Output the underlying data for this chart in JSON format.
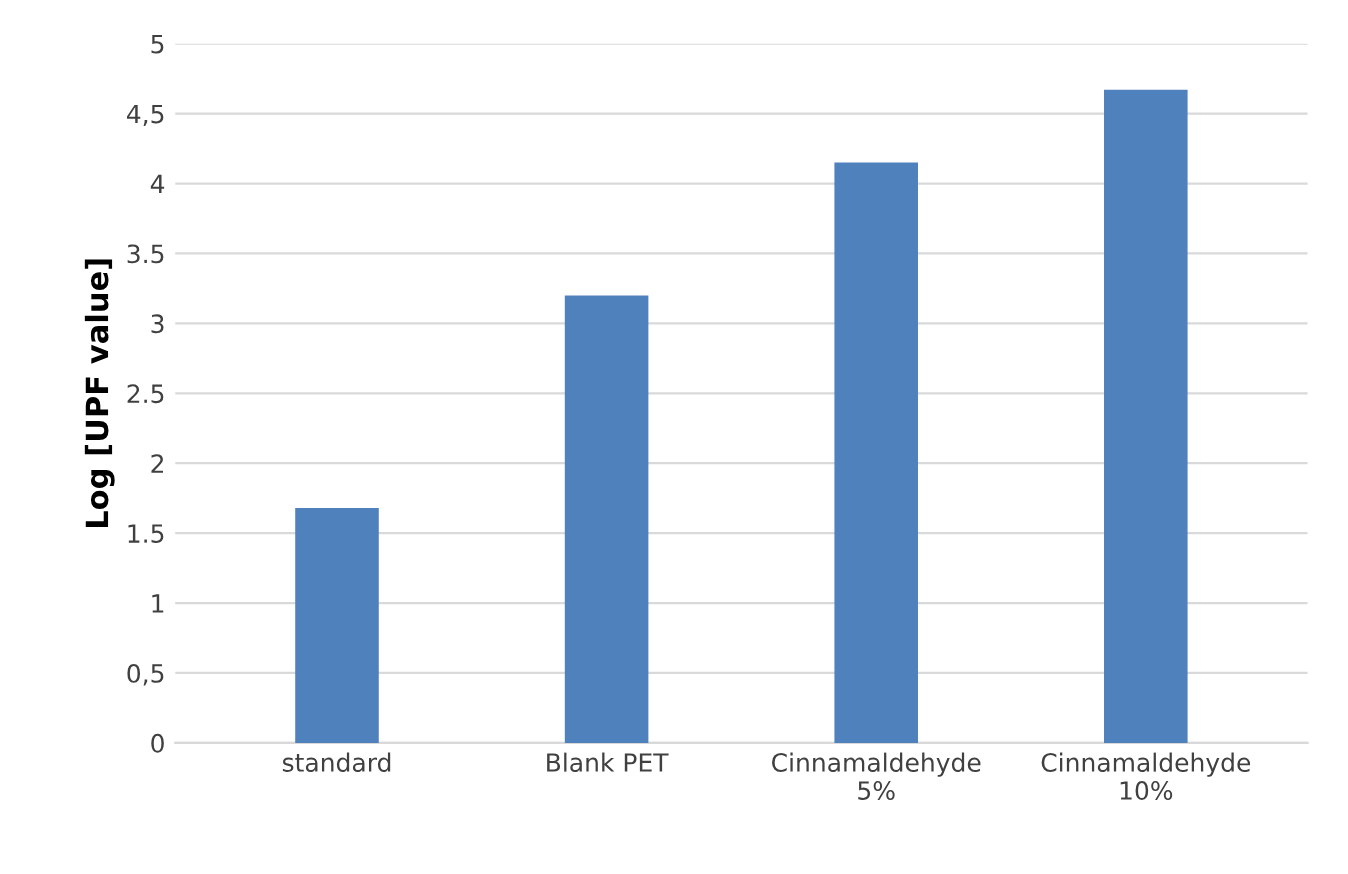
{
  "chart_data": {
    "type": "bar",
    "ylabel": "Log [UPF value]",
    "categories": [
      "standard",
      "Blank PET",
      "Cinnamaldehyde\n5%",
      "Cinnamaldehyde\n10%"
    ],
    "values": [
      1.68,
      3.2,
      4.15,
      4.67
    ],
    "color": "#4f81bd",
    "ylim": [
      0,
      5
    ],
    "yticks": [
      0,
      {
        "value": 0.5,
        "label": "0,5"
      },
      1,
      {
        "value": 1.5,
        "label": "1.5"
      },
      2,
      {
        "value": 2.5,
        "label": "2.5"
      },
      3,
      {
        "value": 3.5,
        "label": "3.5"
      },
      4,
      {
        "value": 4.5,
        "label": "4,5"
      },
      5
    ],
    "grid": "y"
  }
}
